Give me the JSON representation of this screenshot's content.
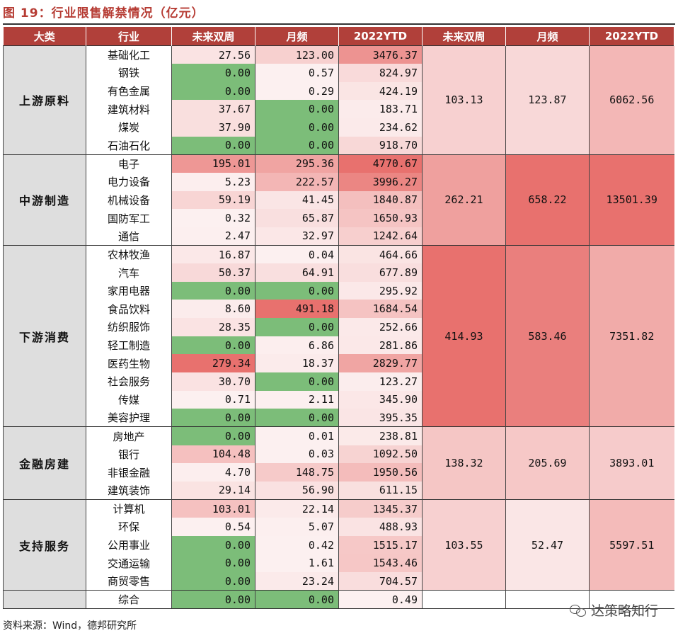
{
  "title": "图 19：行业限售解禁情况（亿元）",
  "headers": [
    "大类",
    "行业",
    "未来双周",
    "月频",
    "2022YTD",
    "未来双周",
    "月频",
    "2022YTD"
  ],
  "source": "资料来源：Wind，德邦研究所",
  "watermark": "达策略知行",
  "colors": {
    "header_bg": "#b1403a",
    "zero_green": "#7cbd79",
    "heat_max": "#e8716e",
    "category_bg": "#dedede"
  },
  "groups": [
    {
      "name": "上游原料",
      "total": [
        "103.13",
        "123.87",
        "6062.56"
      ],
      "rows": [
        [
          "基础化工",
          "27.56",
          "123.00",
          "3476.37"
        ],
        [
          "钢铁",
          "0.00",
          "0.57",
          "824.97"
        ],
        [
          "有色金属",
          "0.00",
          "0.29",
          "424.19"
        ],
        [
          "建筑材料",
          "37.67",
          "0.00",
          "183.71"
        ],
        [
          "煤炭",
          "37.90",
          "0.00",
          "234.62"
        ],
        [
          "石油石化",
          "0.00",
          "0.00",
          "918.70"
        ]
      ]
    },
    {
      "name": "中游制造",
      "total": [
        "262.21",
        "658.22",
        "13501.39"
      ],
      "rows": [
        [
          "电子",
          "195.01",
          "295.36",
          "4770.67"
        ],
        [
          "电力设备",
          "5.23",
          "222.57",
          "3996.27"
        ],
        [
          "机械设备",
          "59.19",
          "41.45",
          "1840.87"
        ],
        [
          "国防军工",
          "0.32",
          "65.87",
          "1650.93"
        ],
        [
          "通信",
          "2.47",
          "32.97",
          "1242.64"
        ]
      ]
    },
    {
      "name": "下游消费",
      "total": [
        "414.93",
        "583.46",
        "7351.82"
      ],
      "rows": [
        [
          "农林牧渔",
          "16.87",
          "0.04",
          "464.66"
        ],
        [
          "汽车",
          "50.37",
          "64.91",
          "677.89"
        ],
        [
          "家用电器",
          "0.00",
          "0.00",
          "295.92"
        ],
        [
          "食品饮料",
          "8.60",
          "491.18",
          "1684.54"
        ],
        [
          "纺织服饰",
          "28.35",
          "0.00",
          "252.66"
        ],
        [
          "轻工制造",
          "0.00",
          "6.86",
          "281.86"
        ],
        [
          "医药生物",
          "279.34",
          "18.37",
          "2829.77"
        ],
        [
          "社会服务",
          "30.70",
          "0.00",
          "123.27"
        ],
        [
          "传媒",
          "0.71",
          "2.11",
          "345.90"
        ],
        [
          "美容护理",
          "0.00",
          "0.00",
          "395.35"
        ]
      ]
    },
    {
      "name": "金融房建",
      "total": [
        "138.32",
        "205.69",
        "3893.01"
      ],
      "rows": [
        [
          "房地产",
          "0.00",
          "0.01",
          "238.81"
        ],
        [
          "银行",
          "104.48",
          "0.03",
          "1092.50"
        ],
        [
          "非银金融",
          "4.70",
          "148.75",
          "1950.56"
        ],
        [
          "建筑装饰",
          "29.14",
          "56.90",
          "611.15"
        ]
      ]
    },
    {
      "name": "支持服务",
      "total": [
        "103.55",
        "52.47",
        "5597.51"
      ],
      "rows": [
        [
          "计算机",
          "103.01",
          "22.14",
          "1345.37"
        ],
        [
          "环保",
          "0.54",
          "5.07",
          "488.93"
        ],
        [
          "公用事业",
          "0.00",
          "0.42",
          "1515.17"
        ],
        [
          "交通运输",
          "0.00",
          "1.61",
          "1543.46"
        ],
        [
          "商贸零售",
          "0.00",
          "23.24",
          "704.57"
        ]
      ]
    },
    {
      "name": "",
      "total": [
        "",
        "",
        ""
      ],
      "rows": [
        [
          "综合",
          "0.00",
          "0.00",
          "0.49"
        ]
      ]
    }
  ]
}
